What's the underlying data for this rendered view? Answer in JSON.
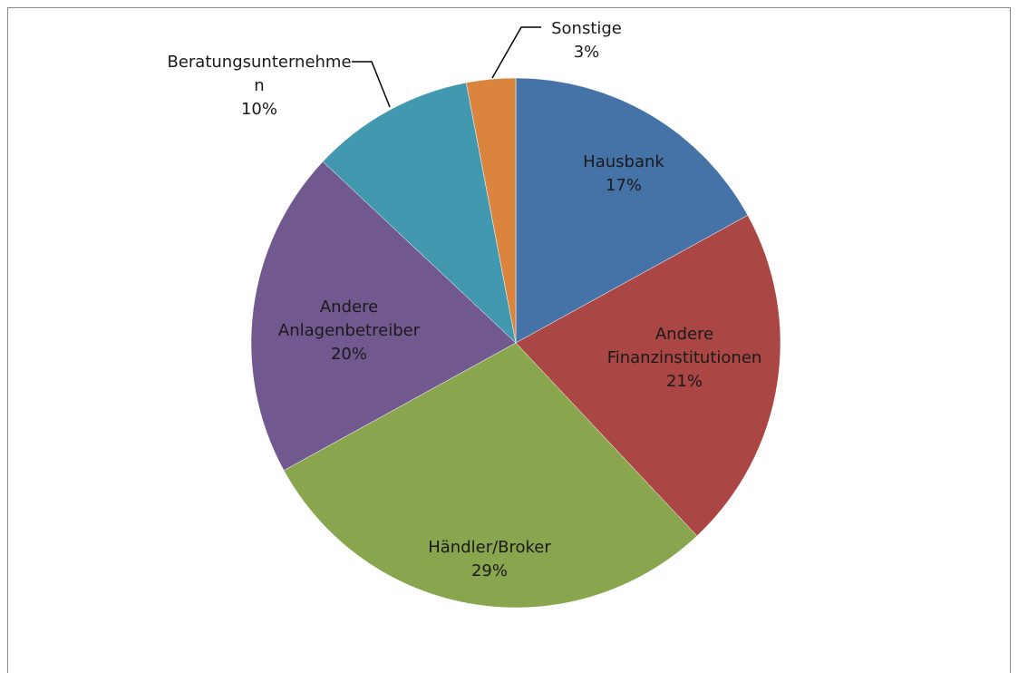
{
  "chart_data": {
    "type": "pie",
    "categories": [
      "Hausbank",
      "Andere Finanzinstitutionen",
      "Händler/Broker",
      "Andere Anlagenbetreiber",
      "Beratungsunternehmen",
      "Sonstige"
    ],
    "values": [
      17,
      21,
      29,
      20,
      10,
      3
    ],
    "value_labels": [
      "17%",
      "21%",
      "29%",
      "20%",
      "10%",
      "3%"
    ],
    "colors": [
      "#4572a7",
      "#aa4643",
      "#89a54e",
      "#71588f",
      "#4198af",
      "#db843d"
    ]
  }
}
